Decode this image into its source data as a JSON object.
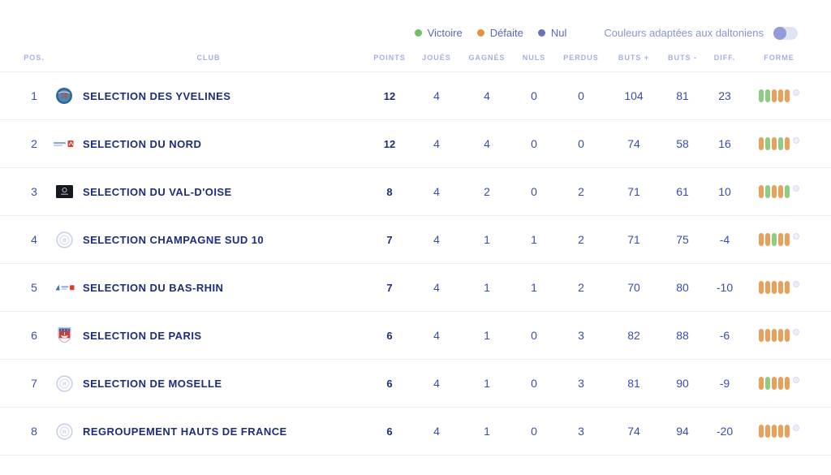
{
  "legend": {
    "items": [
      {
        "label": "Victoire",
        "color": "#72bf6a"
      },
      {
        "label": "Défaite",
        "color": "#e2913f"
      },
      {
        "label": "Nul",
        "color": "#6974b8"
      }
    ],
    "colorblind_label": "Couleurs adaptées aux daltoniens",
    "colorblind_toggle_state": "off"
  },
  "colors": {
    "club_text": "#1d2d7c",
    "stat_text": "#3c4cab",
    "header_text": "#a6aedd",
    "form_win": "#8ecb83",
    "form_loss": "#e9a05a",
    "form_draw": "#6974b8"
  },
  "table": {
    "headers": [
      "POS.",
      "CLUB",
      "POINTS",
      "JOUÉS",
      "GAGNÉS",
      "NULS",
      "PERDUS",
      "BUTS +",
      "BUTS -",
      "DIFF.",
      "FORME"
    ],
    "rows": [
      {
        "pos": "1",
        "club": "SELECTION DES YVELINES",
        "points": "12",
        "joues": "4",
        "gagnes": "4",
        "nuls": "0",
        "perdus": "0",
        "buts_plus": "104",
        "buts_moins": "81",
        "diff": "23",
        "forme": [
          "V",
          "V",
          "D",
          "D",
          "D"
        ]
      },
      {
        "pos": "2",
        "club": "SELECTION DU NORD",
        "points": "12",
        "joues": "4",
        "gagnes": "4",
        "nuls": "0",
        "perdus": "0",
        "buts_plus": "74",
        "buts_moins": "58",
        "diff": "16",
        "forme": [
          "D",
          "V",
          "D",
          "V",
          "D"
        ]
      },
      {
        "pos": "3",
        "club": "SELECTION DU VAL-D'OISE",
        "points": "8",
        "joues": "4",
        "gagnes": "2",
        "nuls": "0",
        "perdus": "2",
        "buts_plus": "71",
        "buts_moins": "61",
        "diff": "10",
        "forme": [
          "D",
          "V",
          "D",
          "D",
          "V"
        ]
      },
      {
        "pos": "4",
        "club": "SELECTION CHAMPAGNE SUD 10",
        "points": "7",
        "joues": "4",
        "gagnes": "1",
        "nuls": "1",
        "perdus": "2",
        "buts_plus": "71",
        "buts_moins": "75",
        "diff": "-4",
        "forme": [
          "D",
          "D",
          "V",
          "D",
          "D"
        ]
      },
      {
        "pos": "5",
        "club": "SELECTION DU BAS-RHIN",
        "points": "7",
        "joues": "4",
        "gagnes": "1",
        "nuls": "1",
        "perdus": "2",
        "buts_plus": "70",
        "buts_moins": "80",
        "diff": "-10",
        "forme": [
          "D",
          "D",
          "D",
          "D",
          "D"
        ]
      },
      {
        "pos": "6",
        "club": "SELECTION DE PARIS",
        "points": "6",
        "joues": "4",
        "gagnes": "1",
        "nuls": "0",
        "perdus": "3",
        "buts_plus": "82",
        "buts_moins": "88",
        "diff": "-6",
        "forme": [
          "D",
          "D",
          "D",
          "D",
          "D"
        ]
      },
      {
        "pos": "7",
        "club": "SELECTION DE MOSELLE",
        "points": "6",
        "joues": "4",
        "gagnes": "1",
        "nuls": "0",
        "perdus": "3",
        "buts_plus": "81",
        "buts_moins": "90",
        "diff": "-9",
        "forme": [
          "D",
          "V",
          "D",
          "D",
          "D"
        ]
      },
      {
        "pos": "8",
        "club": "REGROUPEMENT HAUTS DE FRANCE",
        "points": "6",
        "joues": "4",
        "gagnes": "1",
        "nuls": "0",
        "perdus": "3",
        "buts_plus": "74",
        "buts_moins": "94",
        "diff": "-20",
        "forme": [
          "D",
          "D",
          "D",
          "D",
          "D"
        ]
      }
    ]
  }
}
